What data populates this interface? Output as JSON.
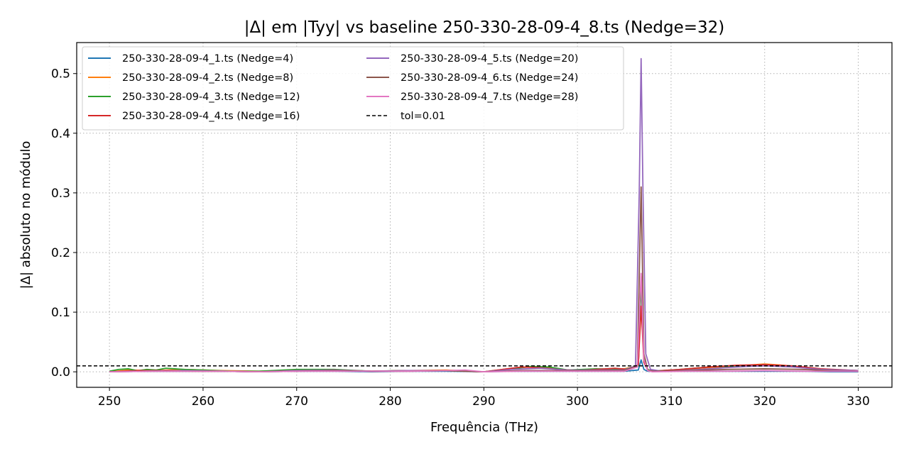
{
  "chart_data": {
    "type": "line",
    "title": "|Δ| em |Tyy| vs baseline 250-330-28-09-4_8.ts (Nedge=32)",
    "xlabel": "Frequência (THz)",
    "ylabel": "|Δ| absoluto no módulo",
    "xlim": [
      246.5,
      333.6
    ],
    "ylim": [
      -0.026,
      0.552
    ],
    "xticks": [
      250,
      260,
      270,
      280,
      290,
      300,
      310,
      320,
      330
    ],
    "yticks": [
      0.0,
      0.1,
      0.2,
      0.3,
      0.4,
      0.5
    ],
    "xtick_labels": [
      "250",
      "260",
      "270",
      "280",
      "290",
      "300",
      "310",
      "320",
      "330"
    ],
    "ytick_labels": [
      "0.0",
      "0.1",
      "0.2",
      "0.3",
      "0.4",
      "0.5"
    ],
    "grid": true,
    "legend_position": "top-left",
    "legend_columns": 2,
    "tolerance": {
      "label": "tol=0.01",
      "value": 0.01,
      "color": "#000000",
      "style": "dashed"
    },
    "series": [
      {
        "name": "250-330-28-09-4_1.ts (Nedge=4)",
        "color": "#1f77b4",
        "x": [
          250,
          252,
          255,
          258,
          262,
          266,
          270,
          274,
          278,
          282,
          286,
          290,
          293,
          296,
          299,
          302,
          305,
          306.5,
          306.8,
          307.1,
          307.5,
          308,
          312,
          316,
          320,
          324,
          327,
          330
        ],
        "y": [
          0.0,
          0.001,
          0.001,
          0.001,
          0.001,
          0.0,
          0.001,
          0.001,
          0.0,
          0.001,
          0.001,
          0.0,
          0.001,
          0.001,
          0.001,
          0.001,
          0.001,
          0.003,
          0.02,
          0.004,
          0.001,
          0.001,
          0.001,
          0.001,
          0.001,
          0.001,
          0.0,
          0.0
        ]
      },
      {
        "name": "250-330-28-09-4_2.ts (Nedge=8)",
        "color": "#ff7f0e",
        "x": [
          250,
          252,
          255,
          258,
          262,
          266,
          270,
          274,
          278,
          282,
          286,
          290,
          293,
          295,
          297,
          299,
          302,
          305,
          306.5,
          306.8,
          307.1,
          307.5,
          308,
          310,
          313,
          316,
          318,
          320,
          322,
          324,
          327,
          330
        ],
        "y": [
          0.0,
          0.003,
          0.002,
          0.004,
          0.002,
          0.001,
          0.003,
          0.003,
          0.001,
          0.002,
          0.003,
          0.0,
          0.006,
          0.008,
          0.007,
          0.003,
          0.004,
          0.005,
          0.01,
          0.16,
          0.02,
          0.003,
          0.001,
          0.002,
          0.006,
          0.009,
          0.011,
          0.013,
          0.011,
          0.007,
          0.003,
          0.002
        ]
      },
      {
        "name": "250-330-28-09-4_3.ts (Nedge=12)",
        "color": "#2ca02c",
        "x": [
          250,
          251,
          252,
          253,
          254,
          255,
          256,
          257,
          258,
          260,
          263,
          266,
          270,
          274,
          278,
          281,
          284,
          287,
          290,
          293,
          295,
          297,
          299,
          302,
          305,
          306.5,
          306.8,
          307.1,
          307.5,
          308,
          311,
          314,
          317,
          320,
          323,
          326,
          330
        ],
        "y": [
          0.001,
          0.004,
          0.005,
          0.002,
          0.004,
          0.003,
          0.006,
          0.005,
          0.004,
          0.003,
          0.001,
          0.001,
          0.004,
          0.004,
          0.001,
          0.002,
          0.002,
          0.002,
          0.0,
          0.005,
          0.009,
          0.008,
          0.003,
          0.005,
          0.004,
          0.01,
          0.15,
          0.02,
          0.004,
          0.001,
          0.004,
          0.008,
          0.01,
          0.012,
          0.009,
          0.004,
          0.002
        ]
      },
      {
        "name": "250-330-28-09-4_4.ts (Nedge=16)",
        "color": "#d62728",
        "x": [
          250,
          253,
          256,
          259,
          262,
          266,
          270,
          274,
          278,
          282,
          286,
          290,
          292,
          294,
          296,
          298,
          300,
          302,
          304,
          305.5,
          306.5,
          306.8,
          307.1,
          307.5,
          308,
          311,
          314,
          317,
          320,
          323,
          326,
          330
        ],
        "y": [
          0.0,
          0.002,
          0.002,
          0.001,
          0.001,
          0.0,
          0.002,
          0.003,
          0.001,
          0.002,
          0.002,
          0.0,
          0.004,
          0.008,
          0.007,
          0.004,
          0.002,
          0.004,
          0.006,
          0.004,
          0.012,
          0.11,
          0.016,
          0.003,
          0.001,
          0.004,
          0.008,
          0.011,
          0.012,
          0.01,
          0.005,
          0.002
        ]
      },
      {
        "name": "250-330-28-09-4_5.ts (Nedge=20)",
        "color": "#9467bd",
        "x": [
          250,
          254,
          258,
          262,
          266,
          270,
          274,
          278,
          282,
          286,
          290,
          293,
          296,
          299,
          302,
          305,
          306.2,
          306.6,
          306.8,
          307.0,
          307.3,
          307.8,
          309,
          312,
          315,
          318,
          320,
          323,
          326,
          330
        ],
        "y": [
          0.0,
          0.001,
          0.002,
          0.001,
          0.0,
          0.002,
          0.003,
          0.001,
          0.002,
          0.002,
          0.0,
          0.004,
          0.006,
          0.003,
          0.003,
          0.003,
          0.01,
          0.3,
          0.525,
          0.3,
          0.03,
          0.004,
          0.001,
          0.003,
          0.006,
          0.009,
          0.01,
          0.008,
          0.004,
          0.002
        ]
      },
      {
        "name": "250-330-28-09-4_6.ts (Nedge=24)",
        "color": "#8c564b",
        "x": [
          250,
          254,
          258,
          262,
          266,
          270,
          274,
          278,
          282,
          286,
          290,
          294,
          298,
          302,
          305,
          306.4,
          306.8,
          307.1,
          307.5,
          308,
          312,
          316,
          320,
          324,
          327,
          330
        ],
        "y": [
          0.0,
          0.001,
          0.001,
          0.001,
          0.0,
          0.001,
          0.002,
          0.001,
          0.001,
          0.002,
          0.0,
          0.002,
          0.002,
          0.002,
          0.002,
          0.01,
          0.31,
          0.03,
          0.003,
          0.001,
          0.002,
          0.004,
          0.005,
          0.004,
          0.002,
          0.001
        ]
      },
      {
        "name": "250-330-28-09-4_7.ts (Nedge=28)",
        "color": "#e377c2",
        "x": [
          250,
          254,
          258,
          262,
          266,
          270,
          274,
          278,
          282,
          286,
          288,
          290,
          294,
          298,
          302,
          305,
          306.4,
          306.8,
          307.1,
          307.5,
          308,
          312,
          316,
          320,
          324,
          327,
          330
        ],
        "y": [
          0.0,
          0.001,
          0.001,
          0.001,
          0.0,
          0.001,
          0.001,
          0.001,
          0.001,
          0.002,
          0.003,
          0.0,
          0.001,
          0.001,
          0.001,
          0.001,
          0.008,
          0.165,
          0.02,
          0.002,
          0.0,
          0.001,
          0.001,
          0.002,
          0.001,
          0.001,
          0.001
        ]
      }
    ]
  }
}
